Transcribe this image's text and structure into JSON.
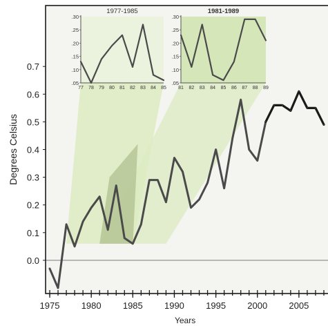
{
  "colors": {
    "background": "#f4f4f1",
    "frame": "#1b1b1b",
    "line": "#4a4a4a",
    "line_recent": "#1a1a1a",
    "highlight": "#dcebc1",
    "highlight_dark": "#9fb07c",
    "inset_fill": "#d5e6b8",
    "zero_line": "#7a7a7a"
  },
  "chart_data": [
    {
      "type": "line",
      "title": "",
      "xlabel": "Years",
      "ylabel": "Degrees Celsius",
      "xlim": [
        1974.5,
        2008.5
      ],
      "ylim": [
        -0.12,
        0.92
      ],
      "grid": false,
      "x_ticks": [
        1975,
        1980,
        1985,
        1990,
        1995,
        2000,
        2005
      ],
      "x_tick_labels": [
        "1975",
        "1980",
        "1985",
        "1990",
        "1995",
        "2000",
        "2005"
      ],
      "y_ticks": [
        0.0,
        0.1,
        0.2,
        0.3,
        0.4,
        0.5,
        0.6,
        0.7
      ],
      "y_tick_labels": [
        "0.0",
        "0.1",
        "0.2",
        "0.3",
        "0.4",
        "0.5",
        "0.6",
        "0.7"
      ],
      "reference_line": 0.0,
      "series": [
        {
          "x": [
            1975,
            1976,
            1977,
            1978,
            1979,
            1980,
            1981,
            1982,
            1983,
            1984,
            1985,
            1986,
            1987,
            1988,
            1989,
            1990,
            1991,
            1992,
            1993,
            1994,
            1995,
            1996,
            1997,
            1998,
            1999,
            2000,
            2001,
            2002,
            2003,
            2004,
            2005,
            2006,
            2007,
            2008
          ],
          "values": [
            -0.03,
            -0.1,
            0.13,
            0.05,
            0.14,
            0.19,
            0.23,
            0.11,
            0.27,
            0.08,
            0.06,
            0.13,
            0.29,
            0.29,
            0.21,
            0.37,
            0.32,
            0.19,
            0.22,
            0.28,
            0.4,
            0.26,
            0.44,
            0.58,
            0.4,
            0.36,
            0.5,
            0.56,
            0.56,
            0.54,
            0.61,
            0.55,
            0.55,
            0.49
          ],
          "emphasized_from": 2001
        }
      ],
      "highlighted_ranges": [
        [
          1977,
          1985
        ],
        [
          1981,
          1989
        ]
      ]
    },
    {
      "type": "line",
      "title": "1977-1985",
      "xlim": [
        1977,
        1985
      ],
      "ylim": [
        0.05,
        0.3
      ],
      "x_tick_labels": [
        "77",
        "78",
        "79",
        "80",
        "81",
        "82",
        "83",
        "84",
        "85"
      ],
      "y_ticks": [
        0.05,
        0.1,
        0.15,
        0.2,
        0.25,
        0.3
      ],
      "y_tick_labels": [
        ".05",
        ".10",
        ".15",
        ".20",
        ".25",
        ".30"
      ],
      "x": [
        1977,
        1978,
        1979,
        1980,
        1981,
        1982,
        1983,
        1984,
        1985
      ],
      "values": [
        0.13,
        0.05,
        0.14,
        0.19,
        0.23,
        0.11,
        0.27,
        0.08,
        0.06
      ]
    },
    {
      "type": "line",
      "title": "1981-1989",
      "xlim": [
        1981,
        1989
      ],
      "ylim": [
        0.05,
        0.3
      ],
      "x_tick_labels": [
        "81",
        "82",
        "83",
        "84",
        "85",
        "86",
        "87",
        "88",
        "89"
      ],
      "y_ticks": [
        0.05,
        0.1,
        0.15,
        0.2,
        0.25,
        0.3
      ],
      "y_tick_labels": [
        ".05",
        ".10",
        ".15",
        ".20",
        ".25",
        ".30"
      ],
      "x": [
        1981,
        1982,
        1983,
        1984,
        1985,
        1986,
        1987,
        1988,
        1989
      ],
      "values": [
        0.23,
        0.11,
        0.27,
        0.08,
        0.06,
        0.13,
        0.29,
        0.29,
        0.21
      ]
    }
  ]
}
